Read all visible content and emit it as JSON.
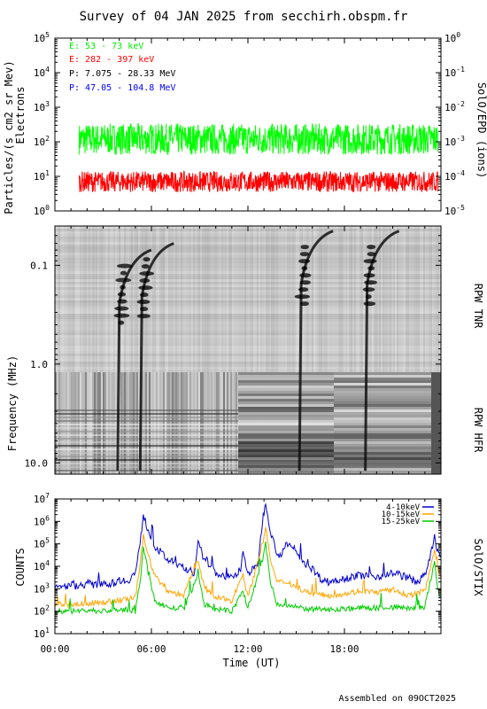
{
  "title": "Survey of 04 JAN 2025 from secchirh.obspm.fr",
  "footer": "Assembled on 09OCT2025",
  "xlabel": "Time (UT)",
  "x_ticks": [
    "00:00",
    "06:00",
    "12:00",
    "18:00"
  ],
  "colors": {
    "green": "#00ff00",
    "red": "#ff0000",
    "black": "#000000",
    "blue": "#0000ff",
    "orange": "#ffa500",
    "navy": "#0000cc"
  },
  "chart_data": [
    {
      "type": "line",
      "panel": "particles",
      "ylabel": "Particles/(s cm2 sr Mev)",
      "ylabel2": "Electrons",
      "right_label": "SolO/EPD (ions)",
      "yscale": "log",
      "ylim": [
        1,
        100000
      ],
      "y_tick_exponents": [
        "0",
        "1",
        "2",
        "3",
        "4",
        "5"
      ],
      "right_ylim": [
        1e-05,
        1
      ],
      "right_tick_exponents": [
        "-5",
        "-4",
        "-3",
        "-2",
        "-1",
        "0"
      ],
      "xlim": [
        0,
        24
      ],
      "grid": false,
      "legend_position": "top-left",
      "series": [
        {
          "name": "E: 53 - 73 keV",
          "color": "green",
          "level": 120,
          "x_start": 1.5,
          "x_end": 23.8
        },
        {
          "name": "E: 282 - 397 keV",
          "color": "red",
          "level": 7,
          "x_start": 1.5,
          "x_end": 23.8
        },
        {
          "name": "P: 7.075 - 28.33 MeV",
          "color": "black",
          "level": null
        },
        {
          "name": "P: 47.05 - 104.8 MeV",
          "color": "blue",
          "level": null
        }
      ]
    },
    {
      "type": "heatmap",
      "panel": "radio",
      "ylabel": "Frequency (MHz)",
      "yscale": "log",
      "ylim": [
        0.04,
        13
      ],
      "y_ticks": [
        "0.1",
        "1.0",
        "10.0"
      ],
      "right_labels": [
        "RPW TNR",
        "RPW HFR"
      ],
      "xlim": [
        0,
        24
      ],
      "bursts": [
        {
          "time": 3.9,
          "freq_top": 0.07
        },
        {
          "time": 5.3,
          "freq_top": 0.06
        },
        {
          "time": 15.2,
          "freq_top": 0.045
        },
        {
          "time": 19.3,
          "freq_top": 0.045
        }
      ]
    },
    {
      "type": "line",
      "panel": "xray",
      "ylabel": "COUNTS",
      "right_label": "SolO/STIX",
      "yscale": "log",
      "ylim": [
        10,
        10000000
      ],
      "y_tick_exponents": [
        "1",
        "2",
        "3",
        "4",
        "5",
        "6",
        "7"
      ],
      "xlim": [
        0,
        24
      ],
      "legend_position": "top-right",
      "series": [
        {
          "name": "4-10keV",
          "color": "navy",
          "points": [
            [
              0,
              1000
            ],
            [
              0.5,
              1200
            ],
            [
              1,
              1500
            ],
            [
              1.5,
              1300
            ],
            [
              2,
              1800
            ],
            [
              2.5,
              1400
            ],
            [
              3,
              2000
            ],
            [
              3.5,
              1600
            ],
            [
              4,
              2500
            ],
            [
              4.5,
              2200
            ],
            [
              5,
              5000
            ],
            [
              5.3,
              100000
            ],
            [
              5.5,
              2000000
            ],
            [
              5.8,
              400000
            ],
            [
              6.2,
              80000
            ],
            [
              7,
              20000
            ],
            [
              8,
              8000
            ],
            [
              8.7,
              5000
            ],
            [
              8.9,
              100000
            ],
            [
              9.2,
              30000
            ],
            [
              10,
              5000
            ],
            [
              11,
              3000
            ],
            [
              11.5,
              5000
            ],
            [
              11.7,
              40000
            ],
            [
              12,
              5000
            ],
            [
              12.6,
              10000
            ],
            [
              12.9,
              1000000
            ],
            [
              13.1,
              8000000
            ],
            [
              13.4,
              400000
            ],
            [
              13.7,
              60000
            ],
            [
              14,
              30000
            ],
            [
              14.3,
              80000
            ],
            [
              14.7,
              80000
            ],
            [
              15,
              40000
            ],
            [
              15.5,
              15000
            ],
            [
              16,
              8000
            ],
            [
              16.5,
              3000
            ],
            [
              17,
              2000
            ],
            [
              17.5,
              2500
            ],
            [
              18,
              3000
            ],
            [
              19,
              4000
            ],
            [
              20,
              3500
            ],
            [
              21,
              5000
            ],
            [
              21.5,
              4000
            ],
            [
              22,
              3000
            ],
            [
              22.5,
              2000
            ],
            [
              23,
              4000
            ],
            [
              23.3,
              20000
            ],
            [
              23.6,
              200000
            ],
            [
              23.8,
              50000
            ],
            [
              24,
              20000
            ]
          ]
        },
        {
          "name": "10-15keV",
          "color": "orange",
          "points": [
            [
              0,
              200
            ],
            [
              1,
              200
            ],
            [
              2,
              220
            ],
            [
              3,
              250
            ],
            [
              4,
              300
            ],
            [
              5,
              400
            ],
            [
              5.3,
              10000
            ],
            [
              5.5,
              300000
            ],
            [
              5.8,
              30000
            ],
            [
              6.2,
              4000
            ],
            [
              7,
              800
            ],
            [
              8,
              500
            ],
            [
              8.9,
              20000
            ],
            [
              9.3,
              1000
            ],
            [
              10,
              400
            ],
            [
              11,
              300
            ],
            [
              11.7,
              5000
            ],
            [
              12,
              400
            ],
            [
              12.9,
              100000
            ],
            [
              13.1,
              500000
            ],
            [
              13.4,
              20000
            ],
            [
              13.8,
              2000
            ],
            [
              14.5,
              2000
            ],
            [
              15,
              1200
            ],
            [
              16,
              600
            ],
            [
              17,
              500
            ],
            [
              18,
              600
            ],
            [
              19,
              800
            ],
            [
              20,
              700
            ],
            [
              21,
              900
            ],
            [
              22,
              500
            ],
            [
              23,
              800
            ],
            [
              23.6,
              60000
            ],
            [
              23.8,
              8000
            ],
            [
              24,
              3000
            ]
          ]
        },
        {
          "name": "15-25keV",
          "color": "green",
          "points": [
            [
              0,
              100
            ],
            [
              1,
              100
            ],
            [
              2,
              110
            ],
            [
              3,
              100
            ],
            [
              4,
              120
            ],
            [
              5,
              100
            ],
            [
              5.3,
              2000
            ],
            [
              5.5,
              80000
            ],
            [
              5.8,
              5000
            ],
            [
              6.2,
              300
            ],
            [
              7,
              150
            ],
            [
              8,
              120
            ],
            [
              8.9,
              4000
            ],
            [
              9.3,
              200
            ],
            [
              10,
              120
            ],
            [
              11,
              100
            ],
            [
              11.7,
              800
            ],
            [
              12,
              120
            ],
            [
              12.9,
              20000
            ],
            [
              13.1,
              100000
            ],
            [
              13.4,
              2000
            ],
            [
              13.8,
              200
            ],
            [
              15,
              150
            ],
            [
              16,
              120
            ],
            [
              17,
              120
            ],
            [
              18,
              130
            ],
            [
              19,
              140
            ],
            [
              20,
              140
            ],
            [
              21,
              150
            ],
            [
              22,
              140
            ],
            [
              23,
              150
            ],
            [
              23.6,
              15000
            ],
            [
              23.8,
              1000
            ],
            [
              24,
              300
            ]
          ]
        }
      ]
    }
  ]
}
